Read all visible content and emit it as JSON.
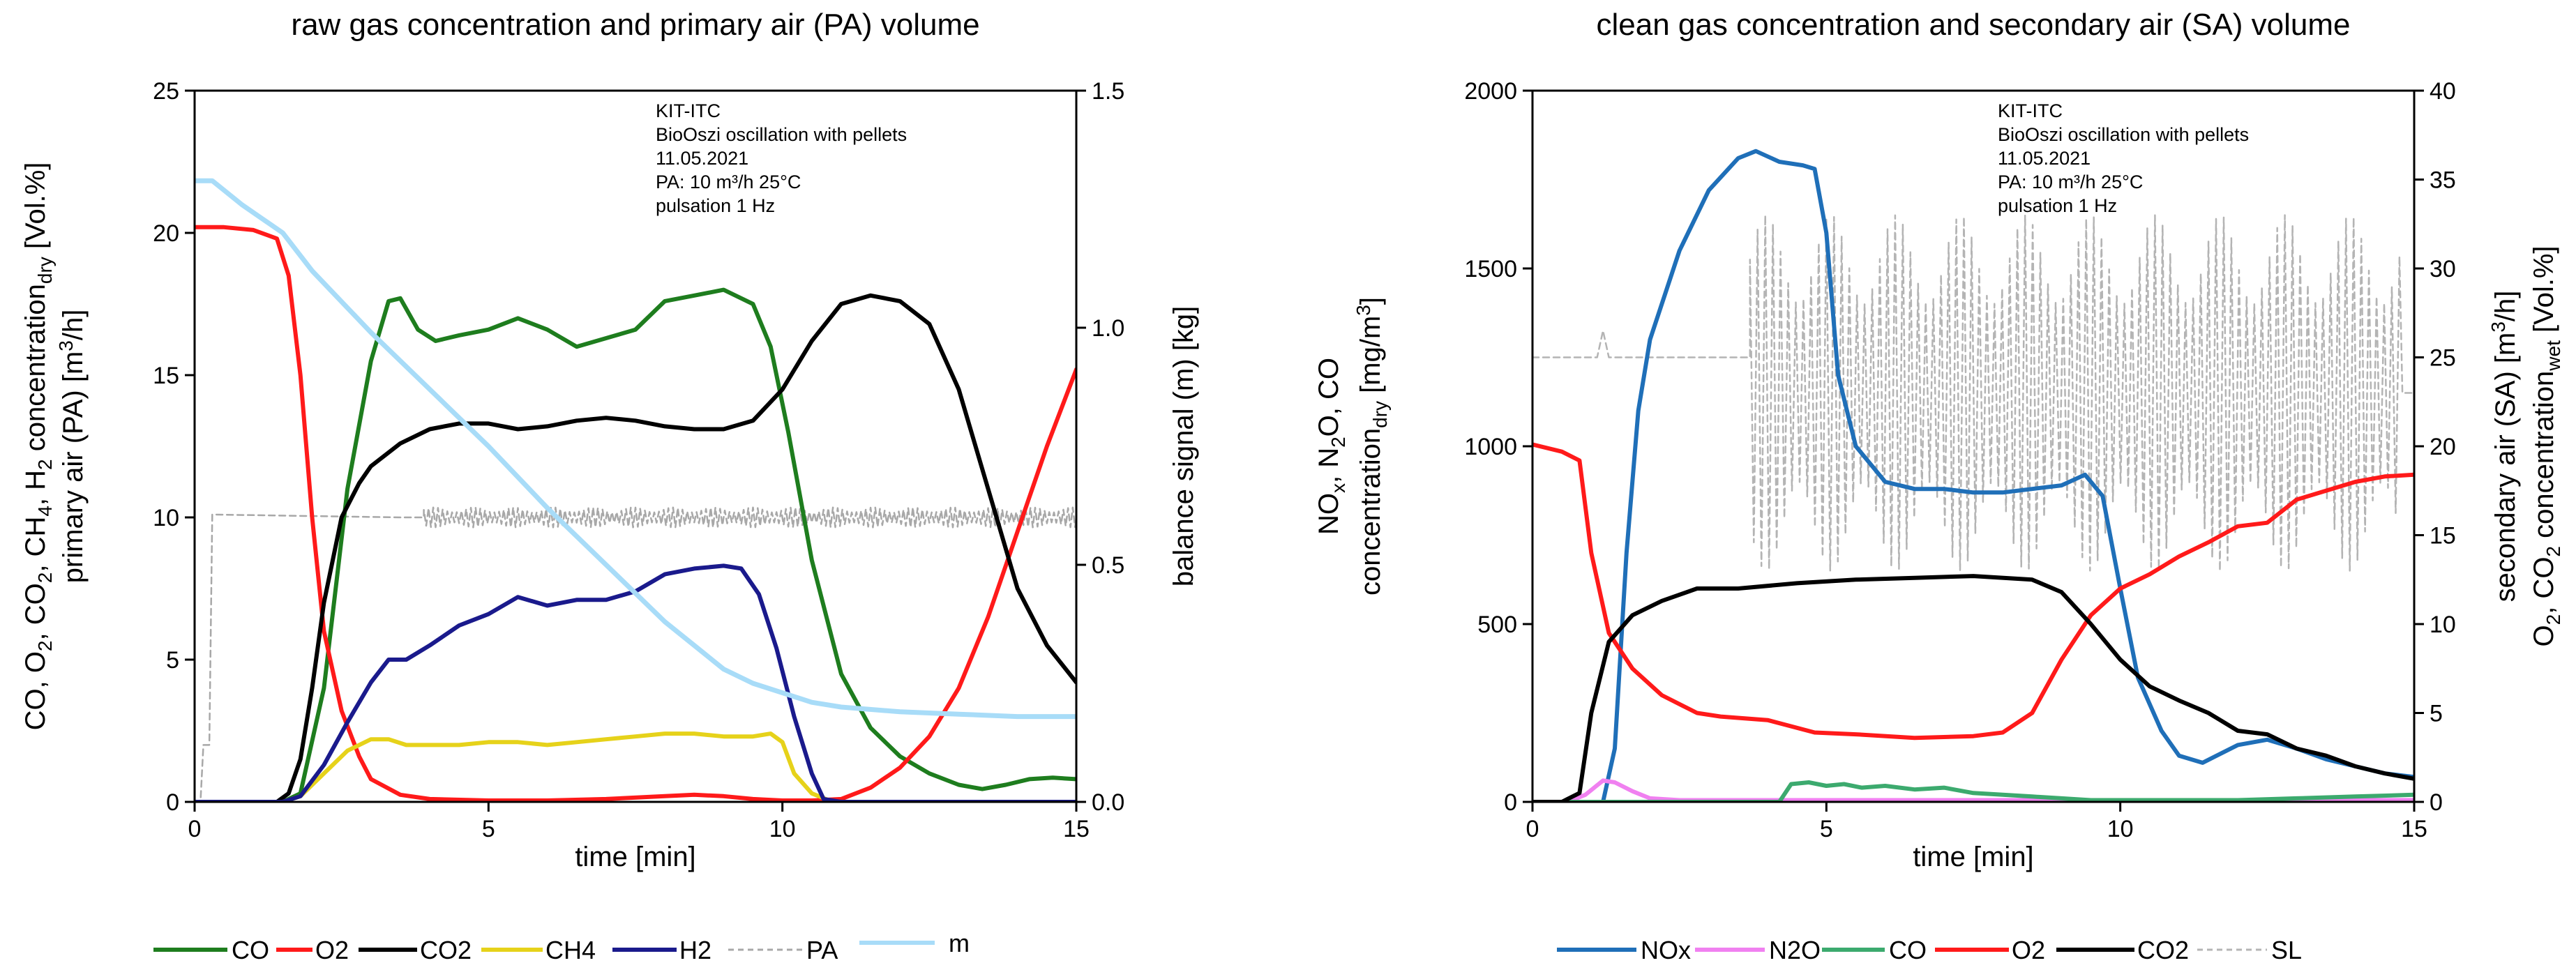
{
  "chart_data": [
    {
      "type": "line",
      "title": "raw gas concentration and primary air (PA) volume",
      "xlabel": "time [min]",
      "ylabel": "CO, O₂, CO₂, CH₄, H₂ concentration_dry [Vol.%]",
      "ylabel_right_outer": "balance signal (m) [kg]",
      "ylabel_right_inner": "primary air (PA) [m³/h]",
      "xlim": [
        0,
        15
      ],
      "ylim": [
        0,
        25
      ],
      "y2lim": [
        0,
        1.5
      ],
      "xticks": [
        "0",
        "5",
        "10",
        "15"
      ],
      "yticks": [
        "0",
        "5",
        "10",
        "15",
        "20",
        "25"
      ],
      "y2ticks": [
        "0.0",
        "0.5",
        "1.0",
        "1.5"
      ],
      "annotation": [
        "KIT-ITC",
        "BioOszi oscillation with pellets",
        "11.05.2021",
        "PA: 10 m³/h 25°C",
        "pulsation 1 Hz"
      ],
      "legend": [
        "CO",
        "O2",
        "CO2",
        "CH4",
        "H2",
        "PA",
        "m"
      ],
      "series": [
        {
          "name": "CO",
          "color": "#1e7d1e",
          "axis": "left",
          "x": [
            0,
            1.5,
            1.8,
            2.2,
            2.6,
            3.0,
            3.3,
            3.5,
            3.8,
            4.1,
            4.5,
            5.0,
            5.5,
            6.0,
            6.5,
            7.0,
            7.5,
            8.0,
            8.5,
            9.0,
            9.5,
            9.8,
            10.1,
            10.5,
            11.0,
            11.5,
            12.0,
            12.5,
            13.0,
            13.4,
            13.8,
            14.2,
            14.6,
            15.0
          ],
          "values": [
            0,
            0,
            0.3,
            4.0,
            11.0,
            15.5,
            17.6,
            17.7,
            16.6,
            16.2,
            16.4,
            16.6,
            17.0,
            16.6,
            16.0,
            16.3,
            16.6,
            17.6,
            17.8,
            18.0,
            17.5,
            16.0,
            13.0,
            8.5,
            4.5,
            2.6,
            1.6,
            1.0,
            0.6,
            0.45,
            0.6,
            0.8,
            0.85,
            0.8
          ]
        },
        {
          "name": "O2",
          "color": "#ff1a1a",
          "axis": "left",
          "x": [
            0,
            0.5,
            1.0,
            1.4,
            1.6,
            1.8,
            2.0,
            2.2,
            2.5,
            2.8,
            3.0,
            3.5,
            4.0,
            5.0,
            6.0,
            7.0,
            8.0,
            8.5,
            9.0,
            9.5,
            10.0,
            10.5,
            11.0,
            11.5,
            12.0,
            12.5,
            13.0,
            13.5,
            14.0,
            14.5,
            15.0
          ],
          "values": [
            20.2,
            20.2,
            20.1,
            19.8,
            18.5,
            15.0,
            10.0,
            6.0,
            3.2,
            1.6,
            0.8,
            0.25,
            0.1,
            0.05,
            0.05,
            0.1,
            0.2,
            0.25,
            0.2,
            0.1,
            0.05,
            0.05,
            0.1,
            0.5,
            1.2,
            2.3,
            4.0,
            6.5,
            9.5,
            12.5,
            15.2
          ]
        },
        {
          "name": "CO2",
          "color": "#000000",
          "axis": "left",
          "x": [
            0,
            1.4,
            1.6,
            1.8,
            2.0,
            2.2,
            2.5,
            2.8,
            3.0,
            3.5,
            4.0,
            4.5,
            5.0,
            5.5,
            6.0,
            6.5,
            7.0,
            7.5,
            8.0,
            8.5,
            9.0,
            9.5,
            10.0,
            10.5,
            11.0,
            11.5,
            12.0,
            12.5,
            13.0,
            13.5,
            14.0,
            14.5,
            15.0
          ],
          "values": [
            0,
            0,
            0.3,
            1.5,
            4.0,
            7.0,
            10.0,
            11.2,
            11.8,
            12.6,
            13.1,
            13.3,
            13.3,
            13.1,
            13.2,
            13.4,
            13.5,
            13.4,
            13.2,
            13.1,
            13.1,
            13.4,
            14.5,
            16.2,
            17.5,
            17.8,
            17.6,
            16.8,
            14.5,
            11.0,
            7.5,
            5.5,
            4.2
          ]
        },
        {
          "name": "CH4",
          "color": "#e6d21a",
          "axis": "left",
          "x": [
            0,
            1.5,
            1.8,
            2.2,
            2.6,
            3.0,
            3.3,
            3.6,
            4.0,
            4.5,
            5.0,
            5.5,
            6.0,
            6.5,
            7.0,
            7.5,
            8.0,
            8.5,
            9.0,
            9.5,
            9.8,
            10.0,
            10.2,
            10.5,
            10.8,
            11.0,
            15.0
          ],
          "values": [
            0,
            0,
            0.2,
            1.0,
            1.8,
            2.2,
            2.2,
            2.0,
            2.0,
            2.0,
            2.1,
            2.1,
            2.0,
            2.1,
            2.2,
            2.3,
            2.4,
            2.4,
            2.3,
            2.3,
            2.4,
            2.1,
            1.0,
            0.3,
            0.05,
            0,
            0
          ]
        },
        {
          "name": "H2",
          "color": "#1a1a8c",
          "axis": "left",
          "x": [
            0,
            1.5,
            1.8,
            2.2,
            2.6,
            3.0,
            3.3,
            3.6,
            4.0,
            4.5,
            5.0,
            5.5,
            6.0,
            6.5,
            7.0,
            7.5,
            8.0,
            8.5,
            9.0,
            9.3,
            9.6,
            9.9,
            10.2,
            10.5,
            10.7,
            11.0,
            15.0
          ],
          "values": [
            0,
            0,
            0.2,
            1.3,
            2.8,
            4.2,
            5.0,
            5.0,
            5.5,
            6.2,
            6.6,
            7.2,
            6.9,
            7.1,
            7.1,
            7.4,
            8.0,
            8.2,
            8.3,
            8.2,
            7.3,
            5.4,
            3.0,
            1.0,
            0.1,
            0,
            0
          ]
        },
        {
          "name": "PA",
          "color": "#a8a8a8",
          "dashed": true,
          "axis": "left",
          "x": [
            0,
            0.1,
            0.15,
            0.25,
            0.3,
            3.5,
            3.9,
            15.0
          ],
          "values": [
            0,
            0,
            2.0,
            2.0,
            10.1,
            10.0,
            10.0,
            10.0
          ],
          "oscillation": {
            "from": 3.9,
            "to": 15.0,
            "amplitude": 0.35
          }
        },
        {
          "name": "m",
          "color": "#a8dcf8",
          "axis": "right",
          "x": [
            0,
            0.3,
            0.8,
            1.5,
            2.0,
            3.0,
            4.0,
            5.0,
            6.0,
            7.0,
            8.0,
            8.5,
            9.0,
            9.5,
            10.0,
            10.5,
            11.0,
            12.0,
            13.0,
            14.0,
            15.0
          ],
          "values": [
            1.31,
            1.31,
            1.26,
            1.2,
            1.12,
            0.99,
            0.87,
            0.75,
            0.62,
            0.5,
            0.38,
            0.33,
            0.28,
            0.25,
            0.23,
            0.21,
            0.2,
            0.19,
            0.185,
            0.18,
            0.18
          ]
        }
      ]
    },
    {
      "type": "line",
      "title": "clean gas concentration and secondary air (SA) volume",
      "xlabel": "time [min]",
      "ylabel": "NOₓ, N₂O, CO concentration_dry [mg/m³]",
      "ylabel_right_outer": "O₂, CO₂ concentration_wet [Vol.%]",
      "ylabel_right_inner": "secondary air (SA) [m³/h]",
      "xlim": [
        0,
        15
      ],
      "ylim": [
        0,
        2000
      ],
      "y2lim": [
        0,
        40
      ],
      "xticks": [
        "0",
        "5",
        "10",
        "15"
      ],
      "yticks": [
        "0",
        "500",
        "1000",
        "1500",
        "2000"
      ],
      "y2ticks": [
        "0",
        "5",
        "10",
        "15",
        "20",
        "25",
        "30",
        "35",
        "40"
      ],
      "annotation": [
        "KIT-ITC",
        "BioOszi oscillation with pellets",
        "11.05.2021",
        "PA: 10 m³/h 25°C",
        "pulsation 1 Hz"
      ],
      "legend": [
        "NOx",
        "N2O",
        "CO",
        "O2",
        "CO2",
        "SL"
      ],
      "series": [
        {
          "name": "NOx",
          "color": "#1f6fb8",
          "axis": "left",
          "x": [
            0,
            1.2,
            1.4,
            1.6,
            1.8,
            2.0,
            2.5,
            3.0,
            3.5,
            3.8,
            4.2,
            4.6,
            4.8,
            5.0,
            5.2,
            5.5,
            6.0,
            6.5,
            7.0,
            7.5,
            8.0,
            8.5,
            9.0,
            9.4,
            9.7,
            10.0,
            10.3,
            10.7,
            11.0,
            11.4,
            12.0,
            12.5,
            13.0,
            13.5,
            14.0,
            14.5,
            15.0
          ],
          "values": [
            0,
            0,
            150,
            700,
            1100,
            1300,
            1550,
            1720,
            1810,
            1830,
            1800,
            1790,
            1780,
            1600,
            1200,
            1000,
            900,
            880,
            880,
            870,
            870,
            880,
            890,
            920,
            860,
            600,
            350,
            200,
            130,
            110,
            160,
            175,
            150,
            120,
            100,
            80,
            70
          ]
        },
        {
          "name": "N2O",
          "color": "#f080f0",
          "axis": "left",
          "x": [
            0,
            0.6,
            0.9,
            1.2,
            1.4,
            1.7,
            2.0,
            2.5,
            15.0
          ],
          "values": [
            0,
            0,
            20,
            60,
            55,
            30,
            10,
            5,
            5
          ]
        },
        {
          "name": "CO",
          "color": "#3caa6e",
          "axis": "left",
          "x": [
            0,
            4.2,
            4.4,
            4.7,
            5.0,
            5.3,
            5.6,
            6.0,
            6.5,
            7.0,
            7.5,
            8.0,
            8.5,
            9.0,
            9.5,
            10.0,
            11.0,
            12.0,
            13.0,
            14.0,
            15.0
          ],
          "values": [
            0,
            0,
            50,
            55,
            45,
            50,
            40,
            45,
            35,
            40,
            25,
            20,
            15,
            10,
            5,
            5,
            5,
            5,
            10,
            15,
            20
          ]
        },
        {
          "name": "O2",
          "color": "#ff1a1a",
          "axis": "right",
          "x": [
            0,
            0.5,
            0.8,
            1.0,
            1.3,
            1.7,
            2.2,
            2.8,
            3.2,
            4.0,
            4.8,
            5.5,
            6.5,
            7.5,
            8.0,
            8.5,
            9.0,
            9.5,
            10.0,
            10.5,
            11.0,
            11.5,
            12.0,
            12.5,
            13.0,
            13.5,
            14.0,
            14.5,
            15.0
          ],
          "values": [
            20.1,
            19.7,
            19.2,
            14.0,
            9.5,
            7.5,
            6.0,
            5.0,
            4.8,
            4.6,
            3.9,
            3.8,
            3.6,
            3.7,
            3.9,
            5.0,
            8.0,
            10.5,
            12.0,
            12.8,
            13.8,
            14.6,
            15.5,
            15.7,
            17.0,
            17.5,
            18.0,
            18.3,
            18.4
          ]
        },
        {
          "name": "CO2",
          "color": "#000000",
          "axis": "right",
          "x": [
            0,
            0.5,
            0.8,
            1.0,
            1.3,
            1.7,
            2.2,
            2.8,
            3.5,
            4.5,
            5.5,
            6.5,
            7.5,
            8.5,
            9.0,
            9.5,
            10.0,
            10.5,
            11.0,
            11.5,
            12.0,
            12.5,
            13.0,
            13.5,
            14.0,
            14.5,
            15.0
          ],
          "values": [
            0,
            0,
            0.5,
            5.0,
            9.0,
            10.5,
            11.3,
            12.0,
            12.0,
            12.3,
            12.5,
            12.6,
            12.7,
            12.5,
            11.8,
            10.0,
            8.0,
            6.5,
            5.7,
            5.0,
            4.0,
            3.8,
            3.0,
            2.6,
            2.0,
            1.6,
            1.3
          ]
        },
        {
          "name": "SL",
          "color": "#b4b4b4",
          "dashed": true,
          "axis": "right",
          "x": [
            0,
            1.1,
            1.2,
            1.3,
            1.4,
            3.7,
            15.0
          ],
          "values": [
            25,
            25,
            26.5,
            25,
            25,
            25,
            25
          ],
          "oscillation": {
            "from": 3.7,
            "to": 14.8,
            "amplitude": 10,
            "center": 23
          }
        }
      ]
    }
  ]
}
